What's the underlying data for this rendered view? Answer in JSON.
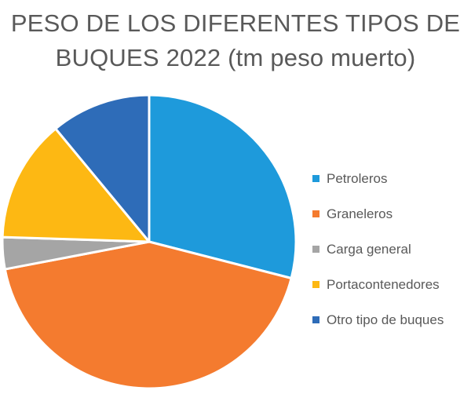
{
  "chart_data": {
    "type": "pie",
    "title_lines": [
      "PESO DE LOS DIFERENTES TIPOS DE",
      "BUQUES 2022 (tm peso muerto)"
    ],
    "categories": [
      "Petroleros",
      "Graneleros",
      "Carga general",
      "Portacontenedores",
      "Otro tipo de buques"
    ],
    "values": [
      29,
      43,
      3.5,
      13.5,
      11
    ],
    "colors": [
      "#1E9ADB",
      "#F47B2F",
      "#A5A5A5",
      "#FDB813",
      "#2E6CB8"
    ],
    "legend_position": "right",
    "start_angle": "top",
    "direction": "clockwise"
  }
}
